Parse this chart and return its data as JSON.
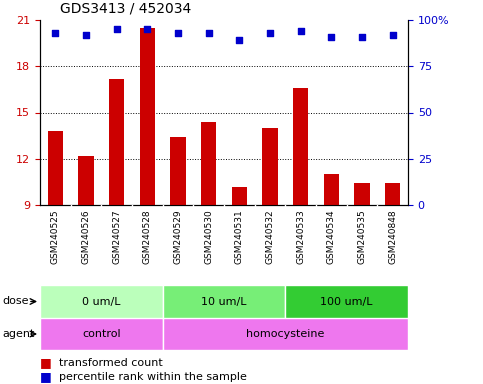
{
  "title": "GDS3413 / 452034",
  "samples": [
    "GSM240525",
    "GSM240526",
    "GSM240527",
    "GSM240528",
    "GSM240529",
    "GSM240530",
    "GSM240531",
    "GSM240532",
    "GSM240533",
    "GSM240534",
    "GSM240535",
    "GSM240848"
  ],
  "transformed_count": [
    13.8,
    12.2,
    17.2,
    20.5,
    13.4,
    14.4,
    10.2,
    14.0,
    16.6,
    11.0,
    10.4,
    10.4
  ],
  "percentile_rank": [
    93,
    92,
    95,
    95,
    93,
    93,
    89,
    93,
    94,
    91,
    91,
    92
  ],
  "bar_color": "#cc0000",
  "dot_color": "#0000cc",
  "ylim_left": [
    9,
    21
  ],
  "ylim_right": [
    0,
    100
  ],
  "yticks_left": [
    9,
    12,
    15,
    18,
    21
  ],
  "yticks_right": [
    0,
    25,
    50,
    75,
    100
  ],
  "grid_values": [
    12,
    15,
    18
  ],
  "dose_groups": [
    {
      "label": "0 um/L",
      "start": 0,
      "end": 4,
      "color": "#bbffbb"
    },
    {
      "label": "10 um/L",
      "start": 4,
      "end": 8,
      "color": "#77ee77"
    },
    {
      "label": "100 um/L",
      "start": 8,
      "end": 12,
      "color": "#33cc33"
    }
  ],
  "agent_control_color": "#ee77ee",
  "agent_homocysteine_color": "#ee77ee",
  "agent_groups": [
    {
      "label": "control",
      "start": 0,
      "end": 4
    },
    {
      "label": "homocysteine",
      "start": 4,
      "end": 12
    }
  ],
  "dose_label": "dose",
  "agent_label": "agent",
  "legend_bar_label": "transformed count",
  "legend_dot_label": "percentile rank within the sample",
  "sample_bg_color": "#cccccc",
  "plot_bg_color": "#ffffff",
  "tick_label_color_left": "#cc0000",
  "tick_label_color_right": "#0000cc",
  "title_color": "#000000",
  "title_fontsize": 10,
  "bar_width": 0.5
}
